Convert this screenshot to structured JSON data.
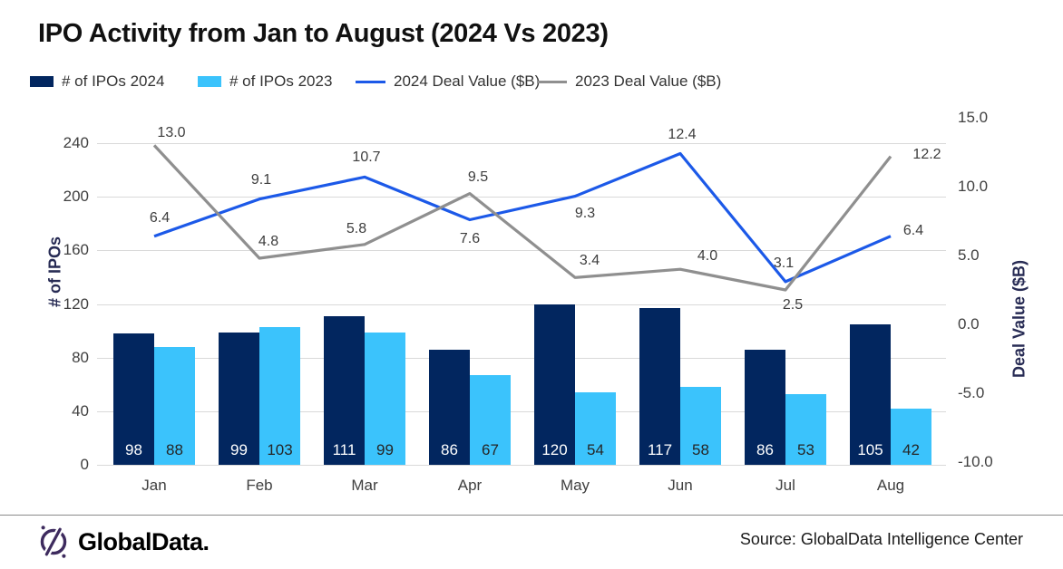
{
  "title": "IPO Activity from Jan to August (2024 Vs 2023)",
  "colors": {
    "bar_2024": "#02265F",
    "bar_2023": "#3BC3FC",
    "line_2024": "#1C59E8",
    "line_2023": "#8F8F8F",
    "grid": "#D9D9D9",
    "axis_text": "#404040",
    "axis_title": "#272B54",
    "brand_purple": "#3E2B5E"
  },
  "chart_data": {
    "type": "combo-bar-line",
    "categories": [
      "Jan",
      "Feb",
      "Mar",
      "Apr",
      "May",
      "Jun",
      "Jul",
      "Aug"
    ],
    "bar_series": [
      {
        "name": "# of IPOs 2024",
        "color": "#02265F",
        "label_color": "#FFFFFF",
        "values": [
          98,
          99,
          111,
          86,
          120,
          117,
          86,
          105
        ]
      },
      {
        "name": "# of IPOs 2023",
        "color": "#3BC3FC",
        "label_color": "#262626",
        "values": [
          88,
          103,
          99,
          67,
          54,
          58,
          53,
          42
        ]
      }
    ],
    "line_series": [
      {
        "name": "2024 Deal Value ($B)",
        "color": "#1C59E8",
        "values": [
          6.4,
          9.1,
          10.7,
          7.6,
          9.3,
          12.4,
          3.1,
          6.4
        ]
      },
      {
        "name": "2023 Deal Value ($B)",
        "color": "#8F8F8F",
        "values": [
          13.0,
          4.8,
          5.8,
          9.5,
          3.4,
          4.0,
          2.5,
          12.2
        ]
      }
    ],
    "left_axis": {
      "title": "# of IPOs",
      "ticks": [
        0,
        40,
        80,
        120,
        160,
        200,
        240
      ],
      "range": [
        0,
        240
      ]
    },
    "right_axis": {
      "title": "Deal Value ($B)",
      "ticks": [
        "15.0",
        "10.0",
        "5.0",
        "0.0",
        "-5.0",
        "-10.0"
      ],
      "range": [
        -10,
        15
      ]
    },
    "grid": true,
    "legend_position": "top"
  },
  "footer": {
    "logo_text": "GlobalData.",
    "source": "Source: GlobalData Intelligence Center"
  }
}
